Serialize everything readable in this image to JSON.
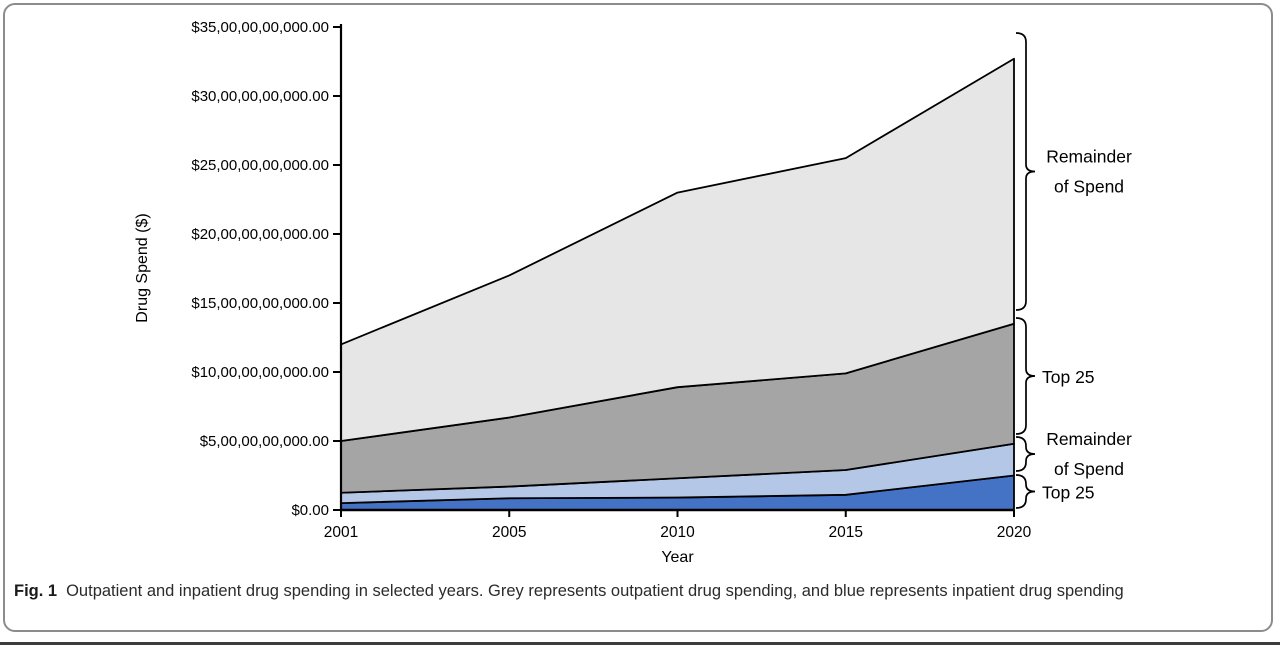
{
  "figure": {
    "caption_label": "Fig. 1",
    "caption_text": "Outpatient and inpatient drug spending in selected years. Grey represents outpatient drug spending, and blue represents inpatient drug spending"
  },
  "chart_data": {
    "type": "area",
    "stacked": true,
    "title": "",
    "xlabel": "Year",
    "ylabel": "Drug Spend ($)",
    "x_categories": [
      "2001",
      "2005",
      "2010",
      "2015",
      "2020"
    ],
    "y_ticks": [
      "$0.00",
      "$5,00,00,00,000.00",
      "$10,00,00,00,000.00",
      "$15,00,00,00,000.00",
      "$20,00,00,00,000.00",
      "$25,00,00,00,000.00",
      "$30,00,00,00,000.00",
      "$35,00,00,00,000.00"
    ],
    "ylim_billions": [
      0,
      35
    ],
    "y_tick_step_billions": 5,
    "grid": false,
    "legend": "none; labeled with brace annotations at right edge",
    "axis_color": "#000000",
    "series": [
      {
        "name": "inpatient-top-25",
        "bracket_label": "Top 25",
        "color": "#4472c4",
        "cumulative_billions": [
          0.5,
          0.85,
          0.9,
          1.1,
          2.5
        ]
      },
      {
        "name": "inpatient-remainder-of-spend",
        "bracket_label": "Remainder of Spend",
        "color": "#b4c7e7",
        "cumulative_billions": [
          1.25,
          1.7,
          2.3,
          2.9,
          4.8
        ]
      },
      {
        "name": "outpatient-top-25",
        "bracket_label": "Top 25",
        "color": "#a5a5a5",
        "cumulative_billions": [
          5.0,
          6.7,
          8.9,
          9.9,
          13.5
        ]
      },
      {
        "name": "outpatient-remainder-of-spend",
        "bracket_label": "Remainder of Spend",
        "color": "#e7e6e6",
        "cumulative_billions": [
          12.0,
          17.0,
          23.0,
          25.5,
          32.7
        ]
      }
    ],
    "annotations": [
      {
        "series": 3,
        "lines": [
          "Remainder",
          "of Spend"
        ]
      },
      {
        "series": 2,
        "lines": [
          "Top 25"
        ]
      },
      {
        "series": 1,
        "lines": [
          "Remainder",
          "of Spend"
        ]
      },
      {
        "series": 0,
        "lines": [
          "Top 25"
        ]
      }
    ]
  }
}
